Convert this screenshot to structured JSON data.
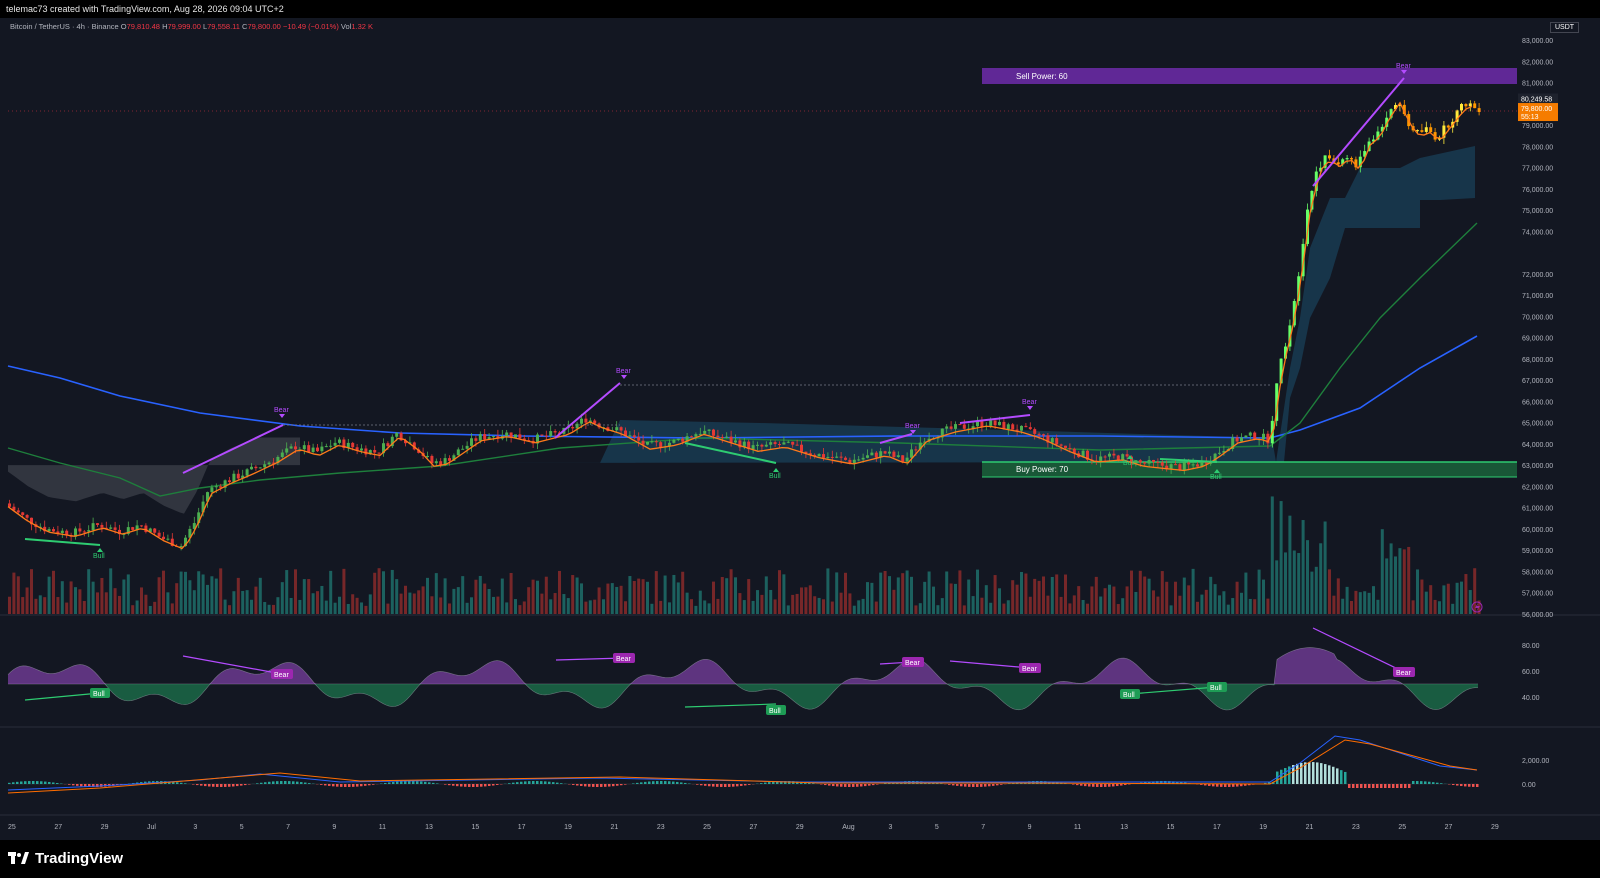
{
  "header": {
    "attribution": "telemac73 created with TradingView.com, Aug 28, 2026 09:04 UTC+2"
  },
  "symbol": {
    "name": "Bitcoin / TetherUS · 4h · Binance",
    "open_label": "O",
    "open": "79,810.48",
    "high_label": "H",
    "high": "79,999.00",
    "low_label": "L",
    "low": "79,558.11",
    "close_label": "C",
    "close": "79,800.00",
    "change": "−10.49 (−0.01%)",
    "vol_label": "Vol",
    "vol": "1.32 K"
  },
  "price_axis": {
    "currency": "USDT",
    "ticks": [
      "83,000.00",
      "82,000.00",
      "81,000.00",
      "79,000.00",
      "78,000.00",
      "77,000.00",
      "76,000.00",
      "75,000.00",
      "74,000.00",
      "72,000.00",
      "71,000.00",
      "70,000.00",
      "69,000.00",
      "68,000.00",
      "67,000.00",
      "66,000.00",
      "65,000.00",
      "64,000.00",
      "63,000.00",
      "62,000.00",
      "61,000.00",
      "60,000.00",
      "59,000.00",
      "58,000.00",
      "57,000.00",
      "56,000.00"
    ],
    "last_price_box": "80,249.58",
    "current_price": "79,800.00",
    "countdown": "55:13"
  },
  "annotations": {
    "sell_power": "Sell Power: 60",
    "buy_power": "Buy Power: 70",
    "bear": "Bear",
    "bull": "Bull"
  },
  "rsi_axis": {
    "ticks": [
      "80.00",
      "60.00",
      "40.00"
    ]
  },
  "macd_axis": {
    "ticks": [
      "2,000.00",
      "0.00"
    ]
  },
  "time_axis": {
    "labels": [
      "25",
      "27",
      "29",
      "Jul",
      "3",
      "5",
      "7",
      "9",
      "11",
      "13",
      "15",
      "17",
      "19",
      "21",
      "23",
      "25",
      "27",
      "29",
      "Aug",
      "3",
      "5",
      "7",
      "9",
      "11",
      "13",
      "15",
      "17",
      "19",
      "21",
      "23",
      "25",
      "27",
      "29"
    ]
  },
  "footer": {
    "brand": "TradingView"
  },
  "colors": {
    "background": "#131722",
    "bull": "#26a69a",
    "bear": "#ef5350",
    "sell_zone": "#7b2fbe",
    "buy_zone": "#22a45d",
    "ma_blue": "#2962ff",
    "ma_green": "#1b7a3a",
    "cloud": "#1b4f6b"
  }
}
